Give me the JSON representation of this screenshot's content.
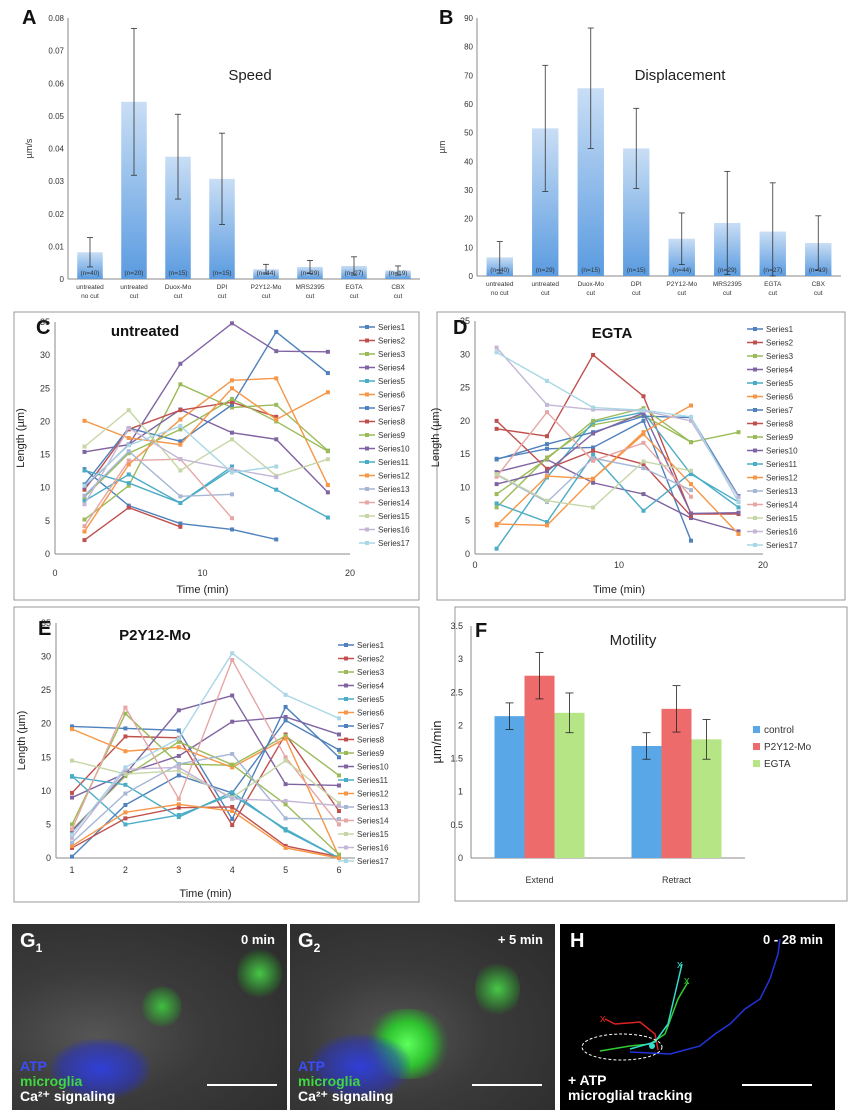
{
  "panels": {
    "A": {
      "letter": "A",
      "title": "Speed",
      "ylabel": "µm/s",
      "yticks": [
        "0",
        "0.01",
        "0.02",
        "0.03",
        "0.04",
        "0.05",
        "0.06",
        "0.07",
        "0.08"
      ]
    },
    "B": {
      "letter": "B",
      "title": "Displacement",
      "ylabel": "µm",
      "yticks": [
        "0",
        "10",
        "20",
        "30",
        "40",
        "50",
        "60",
        "70",
        "80",
        "90"
      ]
    },
    "C": {
      "letter": "C",
      "title": "untreated",
      "xlabel": "Time (min)",
      "ylabel": "Length (µm)"
    },
    "D": {
      "letter": "D",
      "title": "EGTA",
      "xlabel": "Time (min)",
      "ylabel": "Length (µm)"
    },
    "E": {
      "letter": "E",
      "title": "P2Y12-Mo",
      "xlabel": "Time (min)",
      "ylabel": "Length (µm)"
    },
    "F": {
      "letter": "F",
      "title": "Motility",
      "ylabel": "µm/min"
    },
    "G1": {
      "letter": "G",
      "sub": "1",
      "time": "0 min",
      "l1": "ATP",
      "l2": "microglia",
      "l3": "Ca²⁺ signaling"
    },
    "G2": {
      "letter": "G",
      "sub": "2",
      "time": "+ 5 min",
      "l1": "ATP",
      "l2": "microglia",
      "l3": "Ca²⁺ signaling"
    },
    "H": {
      "letter": "H",
      "time": "0 - 28 min",
      "l1": "+ ATP",
      "l2": "microglial tracking"
    }
  },
  "colors": {
    "bar_blue": "#5a9be0",
    "f_control": "#5aa7e8",
    "f_p2y12": "#ee6b6b",
    "f_egta": "#b5e585",
    "series": [
      "#4f81bd",
      "#c0504d",
      "#9bbb59",
      "#8064a2",
      "#4bacc6",
      "#f79646",
      "#4f81bd",
      "#c0504d",
      "#9bbb59",
      "#8064a2",
      "#4bacc6",
      "#f79646",
      "#a5b6d6",
      "#e6a6a4",
      "#c7d6a6",
      "#c3b6d6",
      "#a9d7e6"
    ]
  },
  "chart_data": [
    {
      "id": "A",
      "type": "bar",
      "title": "Speed",
      "ylabel": "µm/s",
      "ylim": [
        0,
        0.08
      ],
      "categories": [
        {
          "n": "(n=40)",
          "l1": "untreated",
          "l2": "no cut"
        },
        {
          "n": "(n=20)",
          "l1": "untreated",
          "l2": "cut"
        },
        {
          "n": "(n=15)",
          "l1": "Duox-Mo",
          "l2": "cut"
        },
        {
          "n": "(n=15)",
          "l1": "DPI",
          "l2": "cut"
        },
        {
          "n": "(n=44)",
          "l1": "P2Y12-Mo",
          "l2": "cut"
        },
        {
          "n": "(n=29)",
          "l1": "MRS2395",
          "l2": "cut"
        },
        {
          "n": "(n=27)",
          "l1": "EGTA",
          "l2": "cut"
        },
        {
          "n": "(n=19)",
          "l1": "CBX",
          "l2": "cut"
        }
      ],
      "values": [
        0.0082,
        0.0543,
        0.0375,
        0.0307,
        0.003,
        0.0037,
        0.004,
        0.0026
      ],
      "errors": [
        0.0045,
        0.0225,
        0.013,
        0.014,
        0.0015,
        0.002,
        0.0028,
        0.0014
      ]
    },
    {
      "id": "B",
      "type": "bar",
      "title": "Displacement",
      "ylabel": "µm",
      "ylim": [
        0,
        90
      ],
      "categories": [
        {
          "n": "(n=40)",
          "l1": "untreated",
          "l2": "no cut"
        },
        {
          "n": "(n=29)",
          "l1": "untreated",
          "l2": "cut"
        },
        {
          "n": "(n=15)",
          "l1": "Duox-Mo",
          "l2": "cut"
        },
        {
          "n": "(n=15)",
          "l1": "DPI",
          "l2": "cut"
        },
        {
          "n": "(n=44)",
          "l1": "P2Y12-Mo",
          "l2": "cut"
        },
        {
          "n": "(n=29)",
          "l1": "MRS2395",
          "l2": "cut"
        },
        {
          "n": "(n=27)",
          "l1": "EGTA",
          "l2": "cut"
        },
        {
          "n": "(n=19)",
          "l1": "CBX",
          "l2": "cut"
        }
      ],
      "values": [
        6.5,
        51.5,
        65.5,
        44.5,
        13.0,
        18.5,
        15.5,
        11.5
      ],
      "errors": [
        5.5,
        22.0,
        21.0,
        14.0,
        9.0,
        18.0,
        17.0,
        9.5
      ]
    },
    {
      "id": "C",
      "type": "line",
      "title": "untreated",
      "xlabel": "Time (min)",
      "ylabel": "Length (µm)",
      "xlim": [
        0,
        20
      ],
      "ylim": [
        0,
        35
      ],
      "xticks": [
        "0",
        "10",
        "20"
      ],
      "yticks": [
        "0",
        "5",
        "10",
        "15",
        "20",
        "25",
        "30",
        "35"
      ],
      "x": [
        2,
        5,
        8.5,
        12,
        15,
        18.5
      ],
      "series": [
        {
          "name": "Series1",
          "values": [
            12.8,
            7.3,
            4.6,
            3.7,
            2.2,
            null
          ]
        },
        {
          "name": "Series2",
          "values": [
            2.1,
            7.0,
            4.1,
            null,
            null,
            null
          ]
        },
        {
          "name": "Series3",
          "values": [
            5.2,
            10.3,
            25.6,
            22.1,
            22.5,
            15.6
          ]
        },
        {
          "name": "Series4",
          "values": [
            15.4,
            16.5,
            21.8,
            18.3,
            17.3,
            9.3
          ]
        },
        {
          "name": "Series5",
          "values": [
            8.0,
            12.0,
            7.7,
            12.8,
            9.7,
            5.5
          ]
        },
        {
          "name": "Series6",
          "values": [
            3.4,
            13.5,
            20.3,
            26.2,
            26.5,
            10.4
          ]
        },
        {
          "name": "Series7",
          "values": [
            10.5,
            19.0,
            17.0,
            22.5,
            33.5,
            27.3
          ]
        },
        {
          "name": "Series8",
          "values": [
            9.7,
            18.8,
            21.7,
            22.9,
            20.7,
            null
          ]
        },
        {
          "name": "Series9",
          "values": [
            8.6,
            15.2,
            18.8,
            23.4,
            20.0,
            15.5
          ]
        },
        {
          "name": "Series10",
          "values": [
            10.1,
            16.5,
            28.7,
            34.8,
            30.6,
            30.5
          ]
        },
        {
          "name": "Series11",
          "values": [
            12.6,
            10.7,
            7.7,
            13.2,
            null,
            null
          ]
        },
        {
          "name": "Series12",
          "values": [
            20.1,
            17.5,
            16.5,
            25.0,
            20.3,
            24.4
          ]
        },
        {
          "name": "Series13",
          "values": [
            8.8,
            15.5,
            8.7,
            9.0,
            null,
            null
          ]
        },
        {
          "name": "Series14",
          "values": [
            4.2,
            14.1,
            14.3,
            5.4,
            null,
            null
          ]
        },
        {
          "name": "Series15",
          "values": [
            16.2,
            21.7,
            12.6,
            17.3,
            11.8,
            14.3
          ]
        },
        {
          "name": "Series16",
          "values": [
            7.5,
            19.0,
            14.3,
            12.8,
            11.6,
            null
          ]
        },
        {
          "name": "Series17",
          "values": [
            10.3,
            16.4,
            19.3,
            12.3,
            13.2,
            null
          ]
        }
      ]
    },
    {
      "id": "D",
      "type": "line",
      "title": "EGTA",
      "xlabel": "Time (min)",
      "ylabel": "Length (µm)",
      "xlim": [
        0,
        20
      ],
      "ylim": [
        0,
        35
      ],
      "xticks": [
        "0",
        "10",
        "20"
      ],
      "yticks": [
        "0",
        "5",
        "10",
        "15",
        "20",
        "25",
        "30",
        "35"
      ],
      "x": [
        1.5,
        5,
        8.2,
        11.7,
        15,
        18.3
      ],
      "series": [
        {
          "name": "Series1",
          "values": [
            14.3,
            15.8,
            16.0,
            20.0,
            2.0,
            null
          ]
        },
        {
          "name": "Series2",
          "values": [
            18.8,
            17.7,
            29.9,
            23.7,
            6.0,
            6.0
          ]
        },
        {
          "name": "Series3",
          "values": [
            7.0,
            14.5,
            19.4,
            20.8,
            16.8,
            18.3
          ]
        },
        {
          "name": "Series4",
          "values": [
            12.3,
            14.2,
            10.7,
            9.0,
            5.4,
            3.4
          ]
        },
        {
          "name": "Series5",
          "values": [
            0.8,
            11.5,
            19.8,
            21.3,
            12.0,
            7.8
          ]
        },
        {
          "name": "Series6",
          "values": [
            4.3,
            11.7,
            11.3,
            18.0,
            10.5,
            3.0
          ]
        },
        {
          "name": "Series7",
          "values": [
            14.2,
            16.5,
            18.3,
            20.7,
            20.5,
            8.7
          ]
        },
        {
          "name": "Series8",
          "values": [
            20.0,
            12.8,
            15.5,
            13.5,
            5.7,
            null
          ]
        },
        {
          "name": "Series9",
          "values": [
            9.0,
            14.3,
            20.0,
            21.9,
            16.8,
            null
          ]
        },
        {
          "name": "Series10",
          "values": [
            10.5,
            12.4,
            18.1,
            21.2,
            6.1,
            6.2
          ]
        },
        {
          "name": "Series11",
          "values": [
            7.6,
            4.8,
            14.9,
            6.5,
            12.2,
            7.0
          ]
        },
        {
          "name": "Series12",
          "values": [
            4.5,
            4.3,
            11.3,
            18.3,
            22.3,
            null
          ]
        },
        {
          "name": "Series13",
          "values": [
            11.9,
            7.8,
            14.4,
            12.9,
            9.6,
            null
          ]
        },
        {
          "name": "Series14",
          "values": [
            11.6,
            21.3,
            14.0,
            16.7,
            8.6,
            null
          ]
        },
        {
          "name": "Series15",
          "values": [
            12.0,
            8.0,
            7.0,
            13.9,
            12.5,
            null
          ]
        },
        {
          "name": "Series16",
          "values": [
            31.0,
            22.4,
            21.7,
            21.5,
            20.0,
            8.5
          ]
        },
        {
          "name": "Series17",
          "values": [
            30.3,
            26.0,
            22.0,
            21.6,
            20.6,
            7.8
          ]
        }
      ]
    },
    {
      "id": "E",
      "type": "line",
      "title": "P2Y12-Mo",
      "xlabel": "Time (min)",
      "ylabel": "Length (µm)",
      "xlim": [
        0.7,
        6.3
      ],
      "ylim": [
        0,
        35
      ],
      "xticks": [
        "1",
        "2",
        "3",
        "4",
        "5",
        "6"
      ],
      "yticks": [
        "0",
        "5",
        "10",
        "15",
        "20",
        "25",
        "30",
        "35"
      ],
      "x": [
        1,
        2,
        3,
        4,
        5,
        6
      ],
      "series": [
        {
          "name": "Series1",
          "values": [
            19.6,
            19.3,
            19.0,
            5.8,
            22.5,
            15.0
          ]
        },
        {
          "name": "Series2",
          "values": [
            9.7,
            18.1,
            17.9,
            4.9,
            18.4,
            7.0
          ]
        },
        {
          "name": "Series3",
          "values": [
            5.0,
            21.5,
            14.0,
            13.8,
            18.2,
            12.3
          ]
        },
        {
          "name": "Series4",
          "values": [
            9.0,
            12.6,
            15.2,
            20.3,
            21.0,
            18.4
          ]
        },
        {
          "name": "Series5",
          "values": [
            12.2,
            5.0,
            6.4,
            9.4,
            4.3,
            0.0
          ]
        },
        {
          "name": "Series6",
          "values": [
            19.2,
            15.9,
            16.5,
            13.5,
            17.8,
            0.2
          ]
        },
        {
          "name": "Series7",
          "values": [
            0.2,
            7.9,
            12.3,
            9.7,
            20.5,
            16.1
          ]
        },
        {
          "name": "Series8",
          "values": [
            1.5,
            5.9,
            7.5,
            7.6,
            1.8,
            0.2
          ]
        },
        {
          "name": "Series9",
          "values": [
            4.2,
            12.2,
            17.3,
            13.9,
            8.0,
            0.5
          ]
        },
        {
          "name": "Series10",
          "values": [
            4.0,
            12.5,
            22.0,
            24.2,
            11.0,
            10.8
          ]
        },
        {
          "name": "Series11",
          "values": [
            12.1,
            10.9,
            6.1,
            9.8,
            4.1,
            0.0
          ]
        },
        {
          "name": "Series12",
          "values": [
            1.8,
            6.8,
            8.0,
            7.0,
            1.5,
            0.0
          ]
        },
        {
          "name": "Series13",
          "values": [
            2.3,
            9.6,
            14.0,
            15.5,
            5.9,
            5.8
          ]
        },
        {
          "name": "Series14",
          "values": [
            4.3,
            22.4,
            8.8,
            29.5,
            15.0,
            5.0
          ]
        },
        {
          "name": "Series15",
          "values": [
            14.5,
            12.5,
            13.0,
            9.0,
            14.5,
            8.2
          ]
        },
        {
          "name": "Series16",
          "values": [
            3.0,
            13.2,
            13.5,
            8.8,
            8.5,
            7.8
          ]
        },
        {
          "name": "Series17",
          "values": [
            3.5,
            13.5,
            17.8,
            30.5,
            24.3,
            20.8
          ]
        }
      ]
    },
    {
      "id": "F",
      "type": "bar",
      "title": "Motility",
      "ylabel": "µm/min",
      "ylim": [
        0,
        3.5
      ],
      "yticks": [
        "0",
        "0.5",
        "1",
        "1.5",
        "2",
        "2.5",
        "3",
        "3.5"
      ],
      "categories": [
        "Extend",
        "Retract"
      ],
      "series": [
        {
          "name": "control",
          "values": [
            2.14,
            1.69
          ],
          "errors": [
            0.2,
            0.2
          ]
        },
        {
          "name": "P2Y12-Mo",
          "values": [
            2.75,
            2.25
          ],
          "errors": [
            0.35,
            0.35
          ]
        },
        {
          "name": "EGTA",
          "values": [
            2.19,
            1.79
          ],
          "errors": [
            0.3,
            0.3
          ]
        }
      ]
    }
  ]
}
